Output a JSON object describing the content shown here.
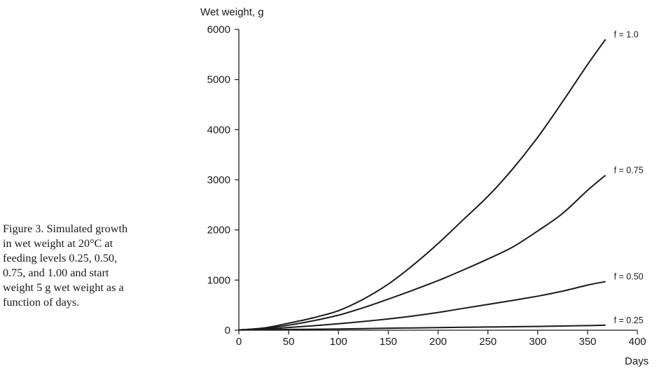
{
  "caption": "Figure 3. Simulated growth in wet weight at 20°C at feeding levels 0.25, 0.50, 0.75, and 1.00 and start weight 5 g wet weight as a function of days.",
  "chart_data": {
    "type": "line",
    "ylabel": "Wet weight, g",
    "xlabel": "Days",
    "xlim": [
      0,
      400
    ],
    "ylim": [
      0,
      6000
    ],
    "xticks": [
      0,
      50,
      100,
      150,
      200,
      250,
      300,
      350,
      400
    ],
    "yticks": [
      0,
      1000,
      2000,
      3000,
      4000,
      5000,
      6000
    ],
    "grid": false,
    "legend": "none",
    "line_color": "#1a1a1a",
    "series": [
      {
        "name": "f = 1.0",
        "x": [
          0,
          25,
          50,
          75,
          100,
          125,
          150,
          175,
          200,
          225,
          250,
          275,
          300,
          325,
          350,
          368
        ],
        "values": [
          5,
          45,
          140,
          250,
          390,
          620,
          920,
          1300,
          1730,
          2200,
          2670,
          3220,
          3850,
          4560,
          5300,
          5800
        ]
      },
      {
        "name": "f = 0.75",
        "x": [
          0,
          25,
          50,
          75,
          100,
          125,
          150,
          175,
          200,
          225,
          250,
          275,
          300,
          325,
          350,
          368
        ],
        "values": [
          5,
          35,
          100,
          190,
          300,
          450,
          620,
          800,
          990,
          1200,
          1420,
          1660,
          1980,
          2330,
          2790,
          3090
        ]
      },
      {
        "name": "f = 0.50",
        "x": [
          0,
          25,
          50,
          75,
          100,
          125,
          150,
          175,
          200,
          225,
          250,
          275,
          300,
          325,
          350,
          368
        ],
        "values": [
          5,
          20,
          55,
          90,
          130,
          175,
          225,
          285,
          355,
          435,
          515,
          595,
          680,
          780,
          900,
          970
        ]
      },
      {
        "name": "f = 0.25",
        "x": [
          0,
          25,
          50,
          75,
          100,
          125,
          150,
          175,
          200,
          225,
          250,
          275,
          300,
          325,
          350,
          368
        ],
        "values": [
          5,
          10,
          15,
          20,
          25,
          32,
          40,
          46,
          52,
          58,
          64,
          70,
          76,
          84,
          92,
          100
        ]
      }
    ]
  }
}
